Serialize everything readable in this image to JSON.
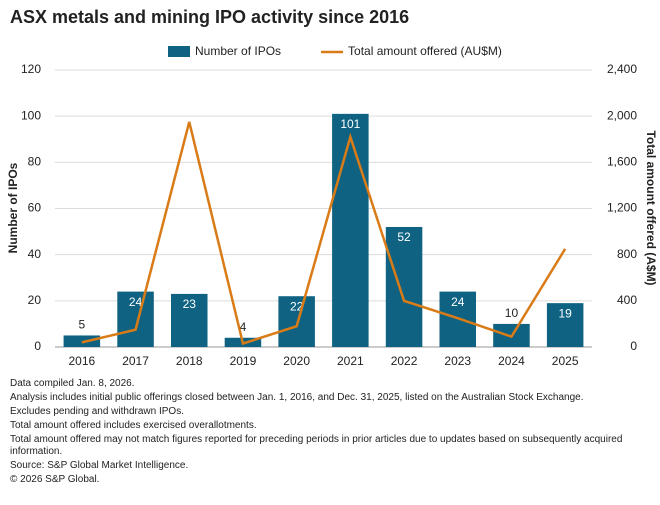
{
  "chart_data": {
    "type": "bar",
    "title": "ASX metals and mining IPO activity since 2016",
    "categories": [
      "2016",
      "2017",
      "2018",
      "2019",
      "2020",
      "2021",
      "2022",
      "2023",
      "2024",
      "2025"
    ],
    "series": [
      {
        "name": "Number of IPOs",
        "type": "bar",
        "color": "#0f6282",
        "values": [
          5,
          24,
          23,
          4,
          22,
          101,
          52,
          24,
          10,
          19
        ]
      },
      {
        "name": "Total amount offered (AU$M)",
        "type": "line",
        "axis": "y2",
        "color": "#d97b17",
        "values": [
          40,
          150,
          1950,
          30,
          180,
          1820,
          400,
          250,
          90,
          850
        ]
      }
    ],
    "y_label": "Number of IPOs",
    "y2_label": "Total amount offered (A$M)",
    "ylim": [
      0,
      120
    ],
    "yticks": [
      0,
      20,
      40,
      60,
      80,
      100,
      120
    ],
    "y2lim": [
      0,
      2400
    ],
    "y2ticks": [
      0,
      400,
      800,
      {
        "value": 1200,
        "label": "1,200"
      },
      {
        "value": 1600,
        "label": "1,600"
      },
      {
        "value": 2000,
        "label": "2,000"
      },
      {
        "value": 2400,
        "label": "2,400"
      }
    ],
    "grid": true,
    "legend": "top",
    "notes": [
      "Data compiled Jan. 8, 2026.",
      "Analysis includes initial public offerings closed between Jan. 1, 2016, and Dec. 31, 2025, listed on the Australian Stock Exchange.",
      "Excludes pending and withdrawn IPOs.",
      "Total amount offered includes exercised overallotments.",
      "Total amount offered may not match figures reported for preceding periods in prior articles due to updates based on subsequently acquired information.",
      "Source: S&P Global Market Intelligence.",
      "© 2026 S&P Global."
    ]
  }
}
